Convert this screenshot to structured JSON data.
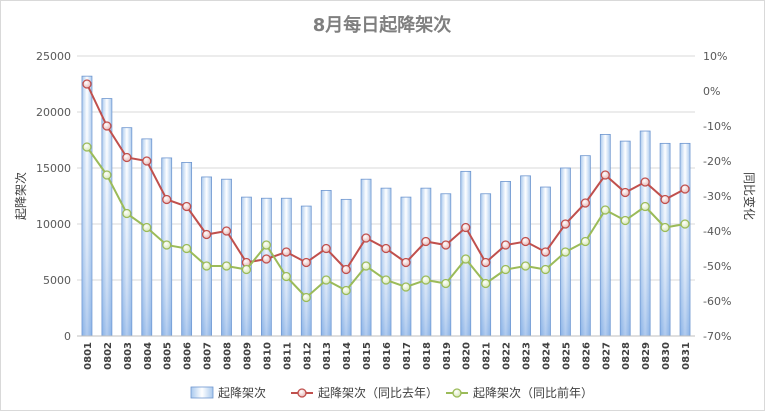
{
  "chart_data": {
    "type": "bar",
    "title": "8月每日起降架次",
    "categories": [
      "0801",
      "0802",
      "0803",
      "0804",
      "0805",
      "0806",
      "0807",
      "0808",
      "0809",
      "0810",
      "0811",
      "0812",
      "0813",
      "0814",
      "0815",
      "0816",
      "0817",
      "0818",
      "0819",
      "0820",
      "0821",
      "0822",
      "0823",
      "0824",
      "0825",
      "0826",
      "0827",
      "0828",
      "0829",
      "0830",
      "0831"
    ],
    "y_left": {
      "label": "起降架次",
      "range": [
        0,
        25000
      ],
      "ticks": [
        "0",
        "5000",
        "10000",
        "15000",
        "20000",
        "25000"
      ],
      "tick_values": [
        0,
        5000,
        10000,
        15000,
        20000,
        25000
      ]
    },
    "y_right": {
      "label": "同比变化",
      "range": [
        -70,
        10
      ],
      "ticks": [
        "-70%",
        "-60%",
        "-50%",
        "-40%",
        "-30%",
        "-20%",
        "-10%",
        "0%",
        "10%"
      ],
      "tick_values": [
        -70,
        -60,
        -50,
        -40,
        -30,
        -20,
        -10,
        0,
        10
      ]
    },
    "grid": true,
    "legend_position": "bottom",
    "series": [
      {
        "name": "起降架次",
        "kind": "bar",
        "axis": "left",
        "color": "#9dc3e6",
        "values": [
          23200,
          21200,
          18600,
          17600,
          15900,
          15500,
          14200,
          14000,
          12400,
          12300,
          12300,
          11600,
          13000,
          12200,
          14000,
          13200,
          12400,
          13200,
          12700,
          14700,
          12700,
          13800,
          14300,
          13300,
          15000,
          16100,
          18000,
          17400,
          18300,
          17200,
          17200
        ]
      },
      {
        "name": "起降架次（同比去年）",
        "kind": "line",
        "axis": "right",
        "color": "#c0504d",
        "values": [
          2,
          -10,
          -19,
          -20,
          -31,
          -33,
          -41,
          -40,
          -49,
          -48,
          -46,
          -49,
          -45,
          -51,
          -42,
          -45,
          -49,
          -43,
          -44,
          -39,
          -49,
          -44,
          -43,
          -46,
          -38,
          -32,
          -24,
          -29,
          -26,
          -31,
          -28
        ]
      },
      {
        "name": "起降架次（同比前年）",
        "kind": "line",
        "axis": "right",
        "color": "#9bbb59",
        "values": [
          -16,
          -24,
          -35,
          -39,
          -44,
          -45,
          -50,
          -50,
          -51,
          -44,
          -53,
          -59,
          -54,
          -57,
          -50,
          -54,
          -56,
          -54,
          -55,
          -48,
          -55,
          -51,
          -50,
          -51,
          -46,
          -43,
          -34,
          -37,
          -33,
          -39,
          -38
        ]
      }
    ]
  }
}
